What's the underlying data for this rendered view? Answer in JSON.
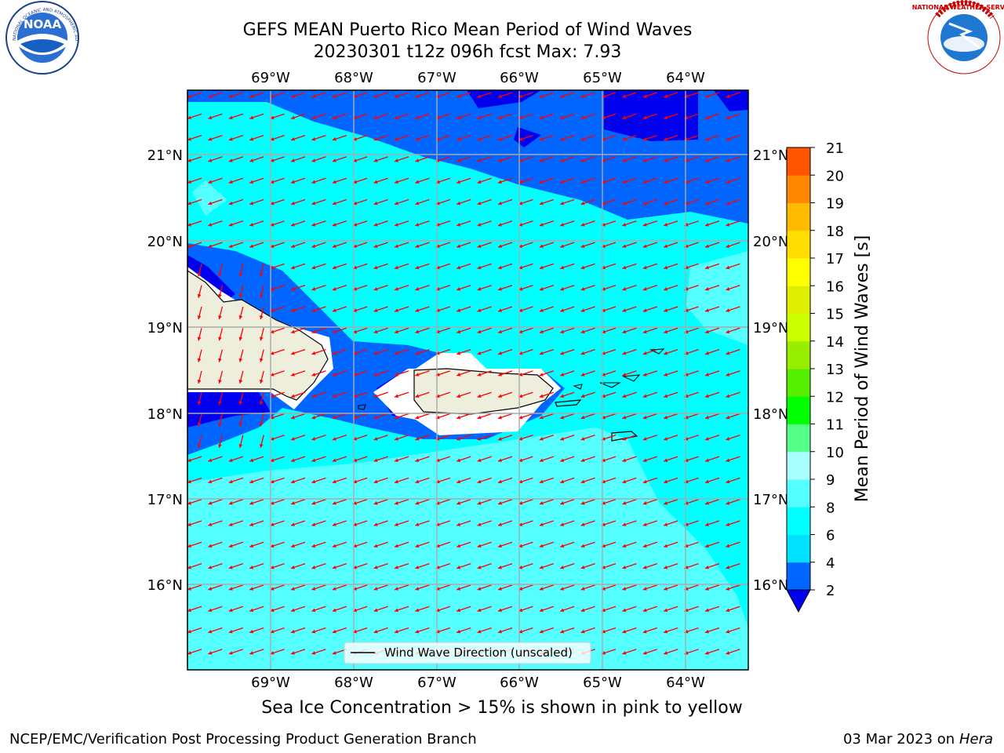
{
  "header": {
    "title_line1": "GEFS MEAN Puerto Rico Mean Period of Wind Waves",
    "title_line2": "20230301 t12z 096h fcst   Max: 7.93"
  },
  "logos": {
    "left": "NOAA",
    "left_ring": "NATIONAL OCEANIC AND ATMOSPHERIC ADMINISTRATION · U.S. DEPARTMENT OF COMMERCE",
    "right_ring": "NATIONAL WEATHER SERVICE"
  },
  "map": {
    "lon_labels": [
      "69°W",
      "68°W",
      "67°W",
      "66°W",
      "65°W",
      "64°W"
    ],
    "lat_labels": [
      "21°N",
      "20°N",
      "19°N",
      "18°N",
      "17°N",
      "16°N"
    ],
    "legend": "Wind Wave Direction (unscaled)",
    "arrow_color": "#ff0000"
  },
  "colorbar": {
    "label": "Mean Period of Wind Waves [s]",
    "ticks": [
      "2",
      "4",
      "6",
      "8",
      "9",
      "10",
      "11",
      "12",
      "13",
      "14",
      "15",
      "16",
      "17",
      "18",
      "19",
      "20",
      "21"
    ],
    "colors": [
      "#0066ff",
      "#00e0ff",
      "#00ffff",
      "#55ffff",
      "#aaffff",
      "#55ff88",
      "#00ff00",
      "#55ee00",
      "#99ee00",
      "#ccff00",
      "#ddee00",
      "#ffff00",
      "#ffdd00",
      "#ffbb00",
      "#ff8800",
      "#ff5500",
      "#ff2200",
      "#ff0000"
    ],
    "under_color": "#0000ee"
  },
  "footer": {
    "sea_ice_note": "Sea Ice Concentration > 15% is shown in pink to yellow",
    "branch": "NCEP/EMC/Verification Post Processing Product Generation Branch",
    "date": "03 Mar 2023 on",
    "host": "Hera"
  }
}
